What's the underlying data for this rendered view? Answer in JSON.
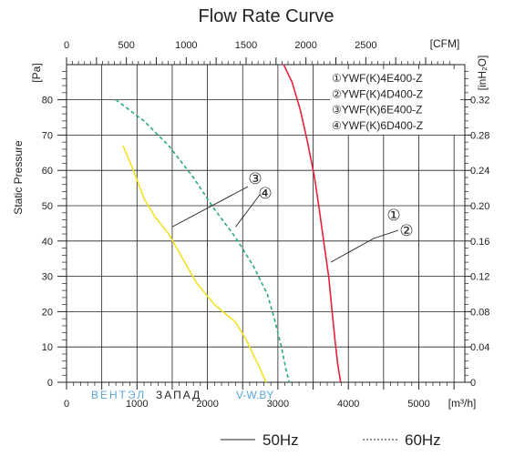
{
  "chart_data": {
    "type": "line",
    "title": "Flow Rate Curve",
    "ylabel": "Static Pressure",
    "y_unit": "[Pa]",
    "y_right_unit": "[inH₂O]",
    "x_top_unit": "[CFM]",
    "x_bottom_unit": "[m³/h]",
    "xlim": [
      0,
      5500
    ],
    "ylim": [
      0,
      90
    ],
    "y_ticks": [
      0,
      10,
      20,
      30,
      40,
      50,
      60,
      70,
      80
    ],
    "y_right_ticks": [
      "0",
      "0.04",
      "0.08",
      "0.12",
      "0.16",
      "0.20",
      "0.24",
      "0.28",
      "0.32"
    ],
    "x_bottom_ticks": [
      0,
      1000,
      2000,
      3000,
      4000,
      5000
    ],
    "x_top_ticks": [
      0,
      500,
      1000,
      1500,
      2000,
      2500
    ],
    "grid": true,
    "legend_entries": [
      "①YWF(K)4E400-Z",
      "②YWF(K)4D400-Z",
      "③YWF(K)6E400-Z",
      "④YWF(K)6D400-Z"
    ],
    "callouts": [
      {
        "labels": [
          "③",
          "④"
        ],
        "points": [
          [
            1500,
            44
          ],
          [
            2400,
            44
          ]
        ]
      },
      {
        "labels": [
          "①",
          "②"
        ],
        "points": [
          [
            3750,
            34
          ]
        ]
      }
    ],
    "series": [
      {
        "labels": [
          "①",
          "②"
        ],
        "color": "#e8203c",
        "style": "solid",
        "points": [
          [
            3080,
            90
          ],
          [
            3200,
            85
          ],
          [
            3320,
            77
          ],
          [
            3420,
            68
          ],
          [
            3520,
            58
          ],
          [
            3580,
            50
          ],
          [
            3650,
            40
          ],
          [
            3720,
            30
          ],
          [
            3770,
            20
          ],
          [
            3810,
            12
          ],
          [
            3850,
            5
          ],
          [
            3890,
            0
          ]
        ]
      },
      {
        "labels": [
          "③",
          "④"
        ],
        "color": "#f2e225",
        "style": "solid",
        "points": [
          [
            800,
            67
          ],
          [
            950,
            60
          ],
          [
            1100,
            52
          ],
          [
            1250,
            47
          ],
          [
            1450,
            42
          ],
          [
            1650,
            35
          ],
          [
            1850,
            28
          ],
          [
            2100,
            22
          ],
          [
            2400,
            17
          ],
          [
            2550,
            12
          ],
          [
            2720,
            5
          ],
          [
            2830,
            0
          ]
        ]
      },
      {
        "labels": [
          "③",
          "④"
        ],
        "color": "#2aa87a",
        "style": "dashed",
        "points": [
          [
            700,
            80
          ],
          [
            1100,
            74
          ],
          [
            1450,
            67
          ],
          [
            1800,
            58
          ],
          [
            2100,
            49
          ],
          [
            2400,
            41
          ],
          [
            2650,
            33
          ],
          [
            2850,
            25
          ],
          [
            2950,
            18
          ],
          [
            3050,
            10
          ],
          [
            3110,
            4
          ],
          [
            3160,
            0
          ]
        ]
      }
    ],
    "bottom_legend": [
      {
        "label": "50Hz",
        "style": "solid"
      },
      {
        "label": "60Hz",
        "style": "dashed"
      }
    ]
  },
  "watermark": {
    "part1": "ВЕНТЭЛ",
    "part2": "ЗАПАД",
    "part3": "V-W.BY"
  }
}
